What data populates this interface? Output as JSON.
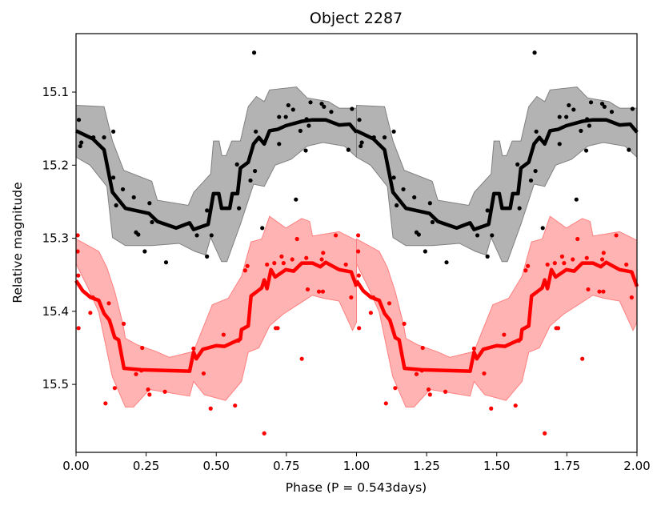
{
  "chart_data": {
    "type": "scatter",
    "title": "Object 2287",
    "xlabel": "Phase (P = 0.543days)",
    "ylabel": "Relative magnitude",
    "xlim": [
      0,
      2
    ],
    "ylim": [
      15.593,
      15.02
    ],
    "y_inverted": true,
    "grid": false,
    "x_ticks": [
      "0.00",
      "0.25",
      "0.50",
      "0.75",
      "1.00",
      "1.25",
      "1.50",
      "1.75",
      "2.00"
    ],
    "y_ticks": [
      "15.1",
      "15.2",
      "15.3",
      "15.4",
      "15.5"
    ],
    "period_repeat": 1,
    "series": [
      {
        "name": "black",
        "color": "#000000",
        "band_color": "#b3b3b3",
        "band_edge": "#808080",
        "points": [
          [
            0.01,
            15.138
          ],
          [
            0.019,
            15.169
          ],
          [
            0.015,
            15.174
          ],
          [
            0.062,
            15.162
          ],
          [
            0.1,
            15.162
          ],
          [
            0.133,
            15.154
          ],
          [
            0.133,
            15.217
          ],
          [
            0.143,
            15.255
          ],
          [
            0.167,
            15.233
          ],
          [
            0.206,
            15.244
          ],
          [
            0.214,
            15.292
          ],
          [
            0.222,
            15.295
          ],
          [
            0.245,
            15.318
          ],
          [
            0.262,
            15.252
          ],
          [
            0.271,
            15.278
          ],
          [
            0.321,
            15.333
          ],
          [
            0.431,
            15.296
          ],
          [
            0.467,
            15.262
          ],
          [
            0.467,
            15.325
          ],
          [
            0.483,
            15.296
          ],
          [
            0.574,
            15.199
          ],
          [
            0.581,
            15.259
          ],
          [
            0.622,
            15.221
          ],
          [
            0.638,
            15.208
          ],
          [
            0.635,
            15.046
          ],
          [
            0.641,
            15.154
          ],
          [
            0.664,
            15.286
          ],
          [
            0.724,
            15.171
          ],
          [
            0.724,
            15.134
          ],
          [
            0.748,
            15.134
          ],
          [
            0.757,
            15.118
          ],
          [
            0.774,
            15.124
          ],
          [
            0.784,
            15.247
          ],
          [
            0.8,
            15.153
          ],
          [
            0.819,
            15.18
          ],
          [
            0.822,
            15.137
          ],
          [
            0.83,
            15.146
          ],
          [
            0.836,
            15.114
          ],
          [
            0.876,
            15.116
          ],
          [
            0.884,
            15.12
          ],
          [
            0.91,
            15.127
          ],
          [
            0.971,
            15.179
          ],
          [
            0.984,
            15.123
          ]
        ],
        "smooth": [
          [
            0.0,
            15.153
          ],
          [
            0.06,
            15.164
          ],
          [
            0.1,
            15.179
          ],
          [
            0.13,
            15.237
          ],
          [
            0.176,
            15.259
          ],
          [
            0.26,
            15.266
          ],
          [
            0.29,
            15.277
          ],
          [
            0.357,
            15.286
          ],
          [
            0.405,
            15.279
          ],
          [
            0.419,
            15.288
          ],
          [
            0.471,
            15.281
          ],
          [
            0.49,
            15.239
          ],
          [
            0.509,
            15.239
          ],
          [
            0.519,
            15.259
          ],
          [
            0.548,
            15.259
          ],
          [
            0.557,
            15.239
          ],
          [
            0.576,
            15.239
          ],
          [
            0.586,
            15.204
          ],
          [
            0.614,
            15.196
          ],
          [
            0.633,
            15.171
          ],
          [
            0.652,
            15.162
          ],
          [
            0.671,
            15.171
          ],
          [
            0.69,
            15.153
          ],
          [
            0.719,
            15.151
          ],
          [
            0.748,
            15.146
          ],
          [
            0.805,
            15.14
          ],
          [
            0.843,
            15.138
          ],
          [
            0.89,
            15.138
          ],
          [
            0.938,
            15.145
          ],
          [
            0.976,
            15.144
          ],
          [
            1.0,
            15.155
          ]
        ],
        "band_upper": [
          [
            0.0,
            15.118
          ],
          [
            0.1,
            15.12
          ],
          [
            0.13,
            15.167
          ],
          [
            0.17,
            15.207
          ],
          [
            0.27,
            15.222
          ],
          [
            0.29,
            15.248
          ],
          [
            0.4,
            15.255
          ],
          [
            0.42,
            15.237
          ],
          [
            0.48,
            15.212
          ],
          [
            0.49,
            15.167
          ],
          [
            0.51,
            15.167
          ],
          [
            0.52,
            15.187
          ],
          [
            0.535,
            15.187
          ],
          [
            0.555,
            15.167
          ],
          [
            0.586,
            15.167
          ],
          [
            0.614,
            15.12
          ],
          [
            0.643,
            15.106
          ],
          [
            0.671,
            15.113
          ],
          [
            0.69,
            15.097
          ],
          [
            0.786,
            15.093
          ],
          [
            0.824,
            15.108
          ],
          [
            0.9,
            15.113
          ],
          [
            0.938,
            15.122
          ],
          [
            1.0,
            15.122
          ]
        ],
        "band_lower": [
          [
            0.0,
            15.189
          ],
          [
            0.05,
            15.2
          ],
          [
            0.11,
            15.229
          ],
          [
            0.13,
            15.299
          ],
          [
            0.176,
            15.31
          ],
          [
            0.27,
            15.31
          ],
          [
            0.367,
            15.307
          ],
          [
            0.424,
            15.318
          ],
          [
            0.462,
            15.323
          ],
          [
            0.48,
            15.299
          ],
          [
            0.519,
            15.332
          ],
          [
            0.538,
            15.332
          ],
          [
            0.586,
            15.281
          ],
          [
            0.633,
            15.226
          ],
          [
            0.671,
            15.229
          ],
          [
            0.71,
            15.2
          ],
          [
            0.767,
            15.192
          ],
          [
            0.824,
            15.174
          ],
          [
            0.88,
            15.169
          ],
          [
            0.957,
            15.174
          ],
          [
            1.0,
            15.189
          ]
        ]
      },
      {
        "name": "red",
        "color": "#ff0000",
        "band_color": "#ffb3b3",
        "band_edge": "#ff8080",
        "points": [
          [
            0.006,
            15.296
          ],
          [
            0.006,
            15.318
          ],
          [
            0.008,
            15.351
          ],
          [
            0.009,
            15.423
          ],
          [
            0.051,
            15.402
          ],
          [
            0.06,
            15.381
          ],
          [
            0.105,
            15.526
          ],
          [
            0.117,
            15.389
          ],
          [
            0.138,
            15.505
          ],
          [
            0.17,
            15.417
          ],
          [
            0.214,
            15.486
          ],
          [
            0.233,
            15.481
          ],
          [
            0.236,
            15.45
          ],
          [
            0.257,
            15.507
          ],
          [
            0.262,
            15.514
          ],
          [
            0.317,
            15.51
          ],
          [
            0.419,
            15.451
          ],
          [
            0.455,
            15.485
          ],
          [
            0.48,
            15.533
          ],
          [
            0.526,
            15.432
          ],
          [
            0.567,
            15.529
          ],
          [
            0.579,
            15.44
          ],
          [
            0.603,
            15.344
          ],
          [
            0.611,
            15.338
          ],
          [
            0.671,
            15.567
          ],
          [
            0.681,
            15.336
          ],
          [
            0.707,
            15.334
          ],
          [
            0.712,
            15.423
          ],
          [
            0.719,
            15.423
          ],
          [
            0.733,
            15.325
          ],
          [
            0.74,
            15.334
          ],
          [
            0.771,
            15.329
          ],
          [
            0.788,
            15.301
          ],
          [
            0.805,
            15.465
          ],
          [
            0.821,
            15.327
          ],
          [
            0.826,
            15.37
          ],
          [
            0.866,
            15.373
          ],
          [
            0.88,
            15.373
          ],
          [
            0.876,
            15.329
          ],
          [
            0.881,
            15.32
          ],
          [
            0.926,
            15.296
          ],
          [
            0.962,
            15.336
          ],
          [
            0.981,
            15.381
          ]
        ],
        "smooth": [
          [
            0.0,
            15.358
          ],
          [
            0.024,
            15.372
          ],
          [
            0.052,
            15.381
          ],
          [
            0.081,
            15.385
          ],
          [
            0.1,
            15.403
          ],
          [
            0.119,
            15.412
          ],
          [
            0.138,
            15.436
          ],
          [
            0.152,
            15.439
          ],
          [
            0.171,
            15.478
          ],
          [
            0.233,
            15.48
          ],
          [
            0.405,
            15.482
          ],
          [
            0.419,
            15.456
          ],
          [
            0.429,
            15.465
          ],
          [
            0.452,
            15.452
          ],
          [
            0.5,
            15.447
          ],
          [
            0.529,
            15.448
          ],
          [
            0.557,
            15.443
          ],
          [
            0.586,
            15.438
          ],
          [
            0.59,
            15.425
          ],
          [
            0.614,
            15.42
          ],
          [
            0.624,
            15.379
          ],
          [
            0.662,
            15.368
          ],
          [
            0.671,
            15.357
          ],
          [
            0.681,
            15.369
          ],
          [
            0.695,
            15.343
          ],
          [
            0.71,
            15.353
          ],
          [
            0.748,
            15.343
          ],
          [
            0.776,
            15.345
          ],
          [
            0.805,
            15.334
          ],
          [
            0.843,
            15.334
          ],
          [
            0.871,
            15.339
          ],
          [
            0.89,
            15.333
          ],
          [
            0.938,
            15.343
          ],
          [
            0.981,
            15.346
          ],
          [
            1.0,
            15.366
          ]
        ],
        "band_upper": [
          [
            0.0,
            15.301
          ],
          [
            0.081,
            15.318
          ],
          [
            0.11,
            15.34
          ],
          [
            0.138,
            15.373
          ],
          [
            0.167,
            15.417
          ],
          [
            0.176,
            15.437
          ],
          [
            0.219,
            15.446
          ],
          [
            0.286,
            15.455
          ],
          [
            0.333,
            15.463
          ],
          [
            0.419,
            15.455
          ],
          [
            0.486,
            15.391
          ],
          [
            0.543,
            15.382
          ],
          [
            0.59,
            15.352
          ],
          [
            0.624,
            15.305
          ],
          [
            0.662,
            15.301
          ],
          [
            0.69,
            15.27
          ],
          [
            0.748,
            15.286
          ],
          [
            0.805,
            15.273
          ],
          [
            0.833,
            15.277
          ],
          [
            0.843,
            15.297
          ],
          [
            0.938,
            15.291
          ],
          [
            1.0,
            15.303
          ]
        ],
        "band_lower": [
          [
            0.0,
            15.335
          ],
          [
            0.043,
            15.368
          ],
          [
            0.081,
            15.401
          ],
          [
            0.129,
            15.489
          ],
          [
            0.176,
            15.531
          ],
          [
            0.205,
            15.531
          ],
          [
            0.262,
            15.507
          ],
          [
            0.405,
            15.516
          ],
          [
            0.419,
            15.496
          ],
          [
            0.457,
            15.514
          ],
          [
            0.533,
            15.522
          ],
          [
            0.59,
            15.496
          ],
          [
            0.614,
            15.456
          ],
          [
            0.652,
            15.45
          ],
          [
            0.69,
            15.42
          ],
          [
            0.738,
            15.404
          ],
          [
            0.843,
            15.378
          ],
          [
            0.88,
            15.382
          ],
          [
            0.938,
            15.386
          ],
          [
            0.986,
            15.426
          ],
          [
            1.0,
            15.415
          ]
        ]
      }
    ]
  }
}
